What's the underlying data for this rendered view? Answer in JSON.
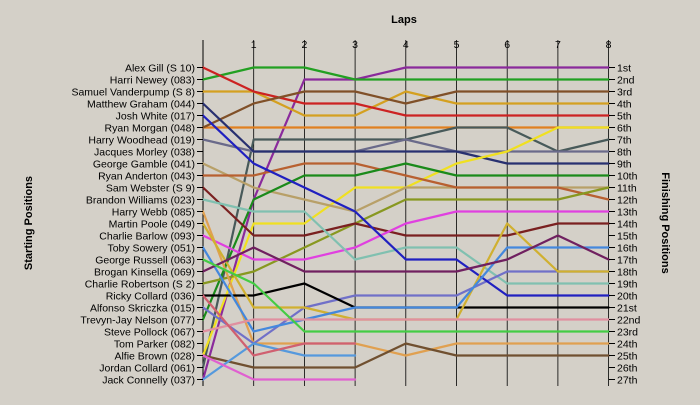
{
  "chart_data": {
    "type": "line",
    "title": "Laps",
    "ylabel_left": "Starting Positions",
    "ylabel_right": "Finishing Positions",
    "laps": [
      0,
      1,
      2,
      3,
      4,
      5,
      6,
      7,
      8
    ],
    "lap_labels": [
      "1",
      "2",
      "3",
      "4",
      "5",
      "6",
      "7",
      "8"
    ],
    "drivers": [
      "Alex Gill (S 10)",
      "Harri Newey (083)",
      "Samuel Vanderpump (S 8)",
      "Matthew Graham (044)",
      "Josh White (017)",
      "Ryan Morgan (048)",
      "Harry Woodhead (019)",
      "Jacques Morley (038)",
      "George Gamble (041)",
      "Ryan Anderton (043)",
      "Sam Webster (S 9)",
      "Brandon Williams (023)",
      "Harry Webb (085)",
      "Martin Poole (049)",
      "Charlie Barlow (093)",
      "Toby Sowery (051)",
      "George Russell (063)",
      "Brogan Kinsella (069)",
      "Charlie Robertson (S 2)",
      "Ricky Collard (036)",
      "Alfonso Skriczka (015)",
      "Trevyn-Jay Nelson (077)",
      "Steve Pollock (067)",
      "Tom Parker (082)",
      "Alfie Brown (028)",
      "Jordan Collard (061)",
      "Jack Connelly (037)"
    ],
    "finishing_positions": [
      "1st",
      "2nd",
      "3rd",
      "4th",
      "5th",
      "6th",
      "7th",
      "8th",
      "9th",
      "10th",
      "11th",
      "12th",
      "13th",
      "14th",
      "15th",
      "16th",
      "17th",
      "18th",
      "19th",
      "20th",
      "21st",
      "22nd",
      "23rd",
      "24th",
      "25th",
      "26th",
      "27th"
    ],
    "series": [
      {
        "color": "#8a2a9c",
        "values": [
          27,
          12,
          2,
          2,
          1,
          1,
          1,
          1,
          1
        ]
      },
      {
        "color": "#22a022",
        "values": [
          2,
          1,
          1,
          2,
          2,
          2,
          2,
          2,
          2
        ]
      },
      {
        "color": "#d4a020",
        "values": [
          3,
          3,
          5,
          5,
          3,
          4,
          4,
          4,
          4
        ]
      },
      {
        "color": "#cc2222",
        "values": [
          1,
          3,
          4,
          4,
          5,
          5,
          5,
          5,
          5
        ]
      },
      {
        "color": "#e08020",
        "values": [
          6,
          6,
          6,
          6,
          6,
          6,
          6,
          6,
          6
        ]
      },
      {
        "color": "#805028",
        "values": [
          6,
          4,
          3,
          3,
          4,
          3,
          3,
          3,
          3
        ]
      },
      {
        "color": "#485a5a",
        "values": [
          26,
          7,
          7,
          7,
          7,
          6,
          6,
          8,
          7
        ]
      },
      {
        "color": "#6a6a8a",
        "values": [
          7,
          8,
          8,
          8,
          7,
          8,
          8,
          8,
          8
        ]
      },
      {
        "color": "#283070",
        "values": [
          4,
          8,
          8,
          8,
          8,
          8,
          9,
          9,
          9
        ]
      },
      {
        "color": "#f0e020",
        "values": [
          25,
          14,
          14,
          11,
          11,
          9,
          8,
          6,
          6
        ]
      },
      {
        "color": "#b8a068",
        "values": [
          9,
          11,
          12,
          13,
          11,
          11,
          11,
          11,
          11
        ]
      },
      {
        "color": "#b86030",
        "values": [
          10,
          10,
          9,
          9,
          10,
          11,
          11,
          11,
          12
        ]
      },
      {
        "color": "#1a8a1a",
        "values": [
          22,
          12,
          10,
          10,
          9,
          10,
          10,
          10,
          10
        ]
      },
      {
        "color": "#889820",
        "values": [
          19,
          18,
          16,
          14,
          12,
          12,
          12,
          12,
          11
        ]
      },
      {
        "color": "#7a2020",
        "values": [
          11,
          15,
          15,
          14,
          15,
          15,
          15,
          14,
          14
        ]
      },
      {
        "color": "#e040e0",
        "values": [
          15,
          17,
          17,
          16,
          14,
          13,
          13,
          13,
          13
        ]
      },
      {
        "color": "#80c0b0",
        "values": [
          12,
          13,
          13,
          17,
          16,
          16,
          19,
          19,
          19
        ]
      },
      {
        "color": "#e0a050",
        "values": [
          13,
          24,
          24,
          24,
          25,
          24,
          24,
          24,
          24
        ]
      },
      {
        "color": "#7070c8",
        "values": [
          21,
          24,
          21,
          20,
          20,
          20,
          18,
          18,
          18
        ]
      },
      {
        "color": "#000000",
        "values": [
          20,
          20,
          19,
          21,
          21,
          21,
          21,
          21,
          21
        ]
      },
      {
        "color": "#2020c0",
        "values": [
          5,
          9,
          11,
          13,
          17,
          17,
          20,
          20,
          20
        ]
      },
      {
        "color": "#d0b030",
        "values": [
          14,
          21,
          21,
          22,
          22,
          22,
          14,
          18,
          18
        ]
      },
      {
        "color": "#4488dd",
        "values": [
          16,
          23,
          22,
          21,
          21,
          21,
          16,
          16,
          16
        ]
      },
      {
        "color": "#702060",
        "values": [
          18,
          16,
          18,
          18,
          18,
          18,
          17,
          15,
          17
        ]
      },
      {
        "color": "#e090a0",
        "values": [
          23,
          22,
          22,
          22,
          22,
          22,
          22,
          22,
          22
        ]
      },
      {
        "color": "#44cc44",
        "values": [
          17,
          19,
          23,
          23,
          23,
          23,
          23,
          23,
          23
        ]
      },
      {
        "color": "#705030",
        "values": [
          25,
          26,
          26,
          26,
          24,
          25,
          25,
          25,
          25
        ]
      },
      {
        "color": "#5599dd",
        "values": [
          27,
          24,
          25,
          25
        ]
      },
      {
        "color": "#e060d0",
        "values": [
          25,
          27,
          27,
          27
        ]
      },
      {
        "color": "#d06070",
        "values": [
          20,
          25,
          24,
          24
        ]
      }
    ]
  }
}
